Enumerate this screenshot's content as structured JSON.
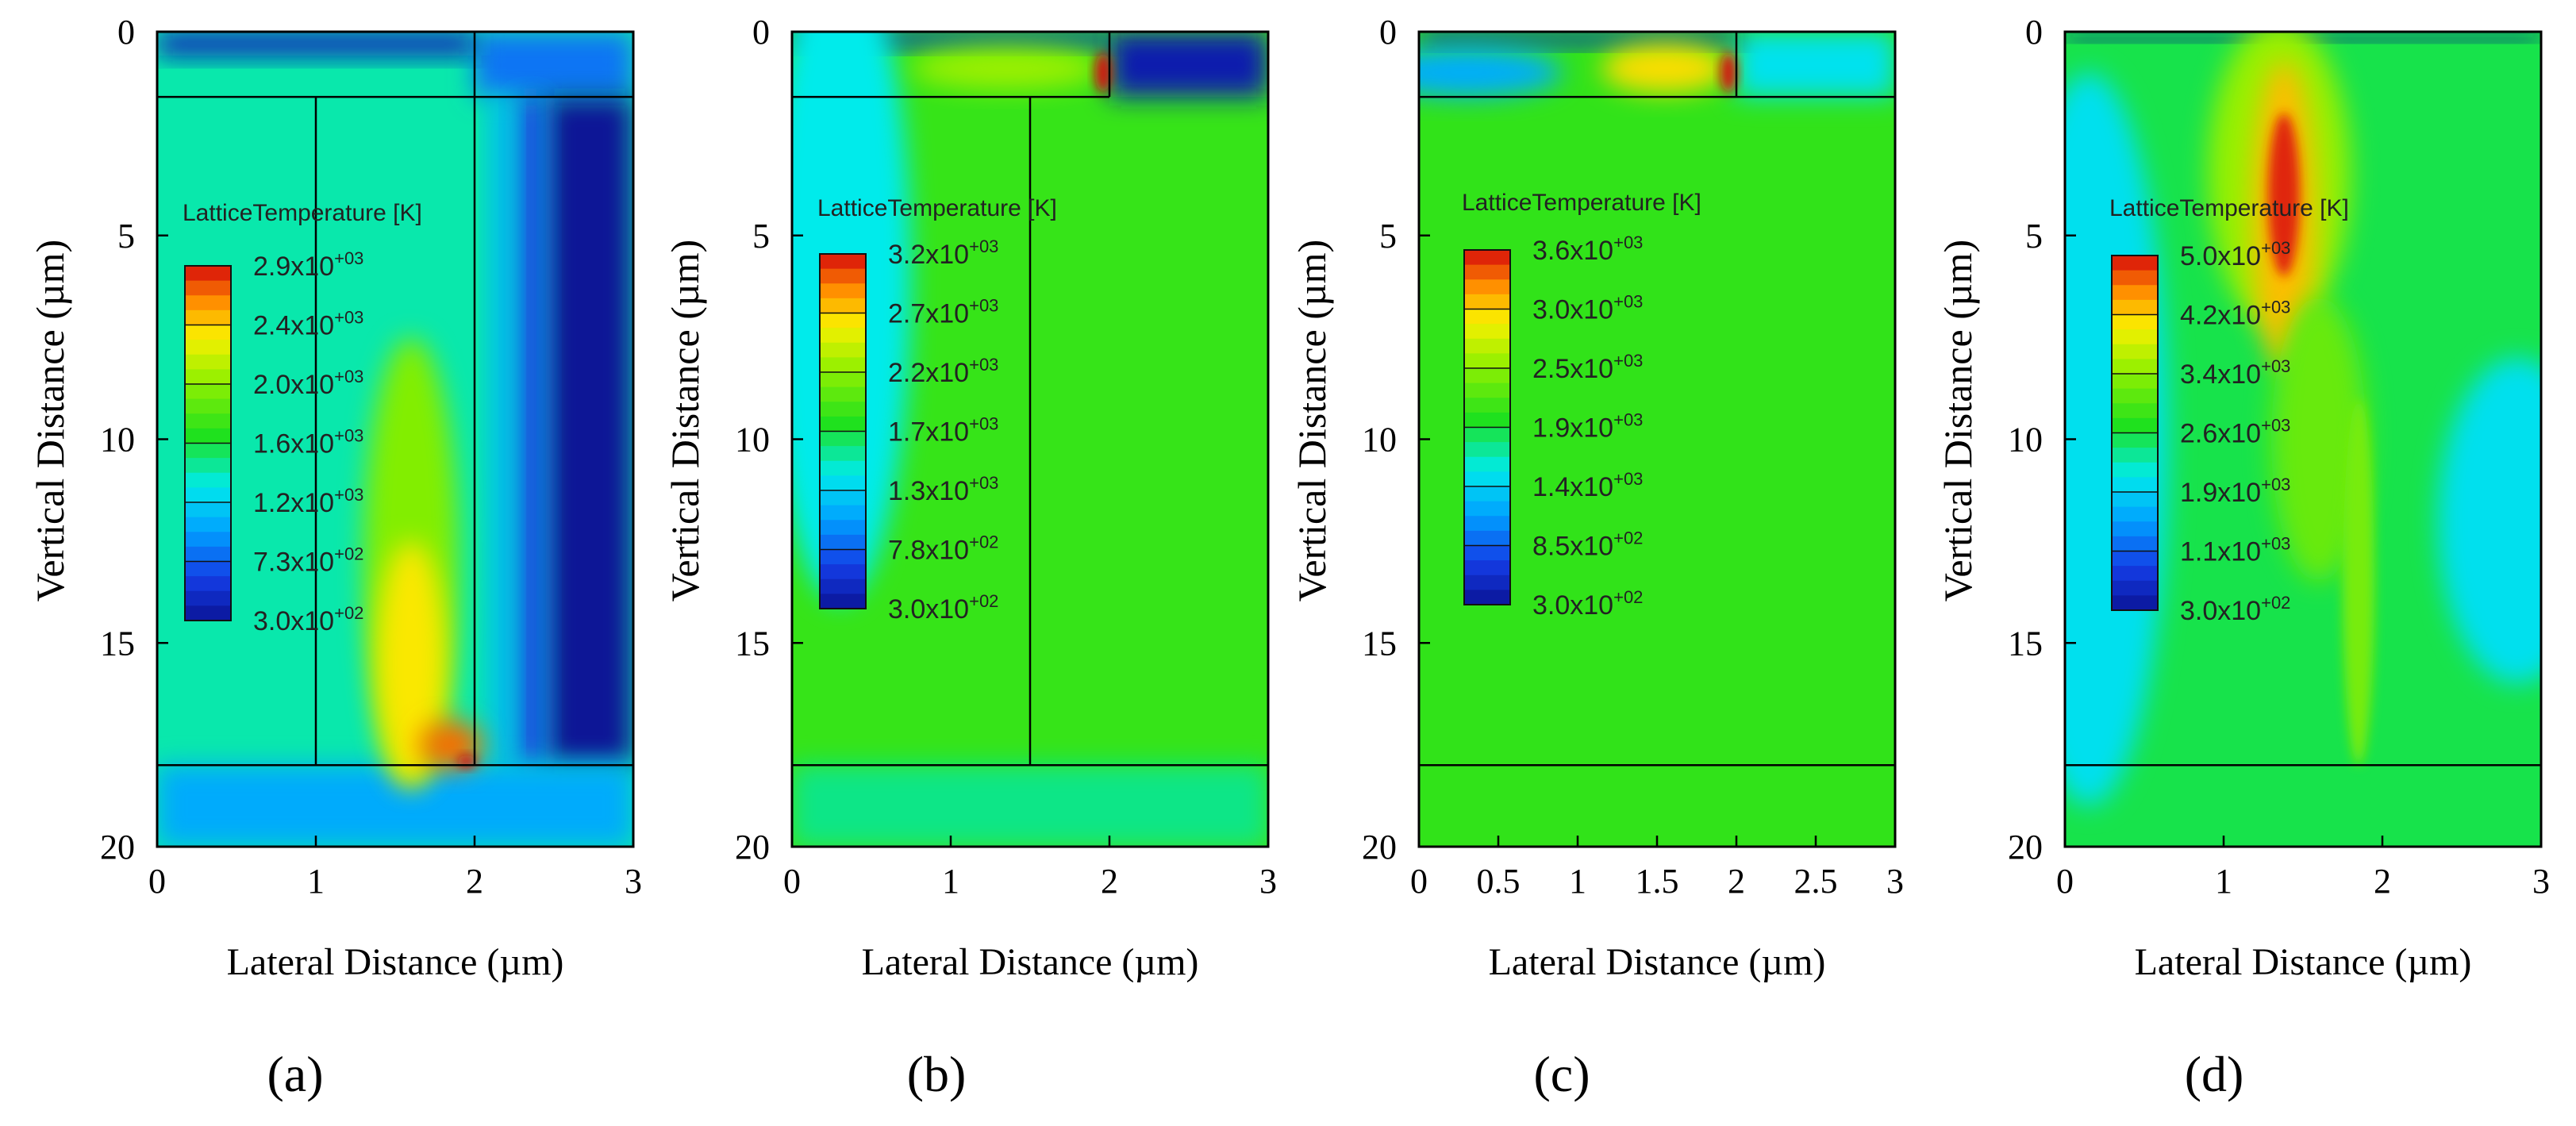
{
  "figure": {
    "panels": [
      "a",
      "b",
      "c",
      "d"
    ]
  },
  "chart_data": [
    {
      "type": "heatmap",
      "panel": "a",
      "caption": "(a)",
      "xlabel": "Lateral Distance (µm)",
      "ylabel": "Vertical Distance (µm)",
      "xlim": [
        0,
        3
      ],
      "ylim": [
        0,
        20
      ],
      "y_inverted": true,
      "xticks": [
        "0",
        "1",
        "2",
        "3"
      ],
      "yticks": [
        "0",
        "5",
        "10",
        "15",
        "20"
      ],
      "legend_title": "LatticeTemperature [K]",
      "legend_values": [
        "2.9x10+03",
        "2.4x10+03",
        "2.0x10+03",
        "1.6x10+03",
        "1.2x10+03",
        "7.3x10+02",
        "3.0x10+02"
      ],
      "legend_mantissa": [
        "2.9",
        "2.4",
        "2.0",
        "1.6",
        "1.2",
        "7.3",
        "3.0"
      ],
      "legend_exponent": [
        "+03",
        "+03",
        "+03",
        "+03",
        "+03",
        "+02",
        "+02"
      ],
      "t_min": 300,
      "t_max": 2900,
      "background_temperature": 1400,
      "structure_lines": [
        {
          "from": [
            0,
            1.6
          ],
          "to": [
            2.0,
            1.6
          ]
        },
        {
          "from": [
            1.0,
            1.6
          ],
          "to": [
            1.0,
            18.0
          ]
        },
        {
          "from": [
            2.0,
            0
          ],
          "to": [
            2.0,
            18.0
          ]
        },
        {
          "from": [
            0,
            18.0
          ],
          "to": [
            3.0,
            18.0
          ]
        },
        {
          "from": [
            2.0,
            1.6
          ],
          "to": [
            3.0,
            1.6
          ]
        }
      ],
      "features": [
        {
          "shape": "rect",
          "x": [
            2.0,
            3.0
          ],
          "y": [
            0,
            1.6
          ],
          "temperature": 800
        },
        {
          "shape": "rect",
          "x": [
            2.45,
            3.0
          ],
          "y": [
            1.6,
            18.0
          ],
          "temperature": 300
        },
        {
          "shape": "rect",
          "x": [
            2.25,
            2.45
          ],
          "y": [
            1.6,
            18.0
          ],
          "temperature": 650
        },
        {
          "shape": "rect",
          "x": [
            2.1,
            2.25
          ],
          "y": [
            1.6,
            18.0
          ],
          "temperature": 1050
        },
        {
          "shape": "rect",
          "x": [
            0,
            2.0
          ],
          "y": [
            0,
            0.6
          ],
          "temperature": 450
        },
        {
          "shape": "rect",
          "x": [
            0,
            3.0
          ],
          "y": [
            18.0,
            20.0
          ],
          "temperature": 1000
        },
        {
          "shape": "ellipse",
          "cx": 1.6,
          "cy": 13.0,
          "rx": 0.3,
          "ry": 5.5,
          "temperature": 2000
        },
        {
          "shape": "ellipse",
          "cx": 1.6,
          "cy": 15.5,
          "rx": 0.22,
          "ry": 3.0,
          "temperature": 2400
        },
        {
          "shape": "ellipse",
          "cx": 1.85,
          "cy": 17.5,
          "rx": 0.2,
          "ry": 0.6,
          "temperature": 2700
        },
        {
          "shape": "ellipse",
          "cx": 1.95,
          "cy": 17.9,
          "rx": 0.06,
          "ry": 0.15,
          "temperature": 2900
        }
      ]
    },
    {
      "type": "heatmap",
      "panel": "b",
      "caption": "(b)",
      "xlabel": "Lateral Distance (µm)",
      "ylabel": "Vertical Distance (µm)",
      "xlim": [
        0,
        3
      ],
      "ylim": [
        0,
        20
      ],
      "y_inverted": true,
      "xticks": [
        "0",
        "1",
        "2",
        "3"
      ],
      "yticks": [
        "0",
        "5",
        "10",
        "15",
        "20"
      ],
      "legend_title": "LatticeTemperature [K]",
      "legend_values": [
        "3.2x10+03",
        "2.7x10+03",
        "2.2x10+03",
        "1.7x10+03",
        "1.3x10+03",
        "7.8x10+02",
        "3.0x10+02"
      ],
      "legend_mantissa": [
        "3.2",
        "2.7",
        "2.2",
        "1.7",
        "1.3",
        "7.8",
        "3.0"
      ],
      "legend_exponent": [
        "+03",
        "+03",
        "+03",
        "+03",
        "+03",
        "+02",
        "+02"
      ],
      "t_min": 300,
      "t_max": 3200,
      "background_temperature": 1900,
      "structure_lines": [
        {
          "from": [
            0,
            1.6
          ],
          "to": [
            2.0,
            1.6
          ]
        },
        {
          "from": [
            1.5,
            1.6
          ],
          "to": [
            1.5,
            18.0
          ]
        },
        {
          "from": [
            2.0,
            0
          ],
          "to": [
            2.0,
            1.6
          ]
        },
        {
          "from": [
            0,
            18.0
          ],
          "to": [
            3.0,
            18.0
          ]
        }
      ],
      "features": [
        {
          "shape": "rect",
          "x": [
            2.0,
            3.0
          ],
          "y": [
            0,
            1.6
          ],
          "temperature": 400
        },
        {
          "shape": "rect",
          "x": [
            0,
            2.0
          ],
          "y": [
            0,
            0.4
          ],
          "temperature": 500
        },
        {
          "shape": "ellipse",
          "cx": 0.3,
          "cy": 6.0,
          "rx": 0.45,
          "ry": 8.0,
          "temperature": 1400
        },
        {
          "shape": "ellipse",
          "cx": 1.35,
          "cy": 0.9,
          "rx": 0.6,
          "ry": 0.5,
          "temperature": 2300
        },
        {
          "shape": "ellipse",
          "cx": 1.96,
          "cy": 1.0,
          "rx": 0.05,
          "ry": 0.5,
          "temperature": 3200
        },
        {
          "shape": "rect",
          "x": [
            0,
            3.0
          ],
          "y": [
            18.0,
            20.0
          ],
          "temperature": 1600
        }
      ]
    },
    {
      "type": "heatmap",
      "panel": "c",
      "caption": "(c)",
      "xlabel": "Lateral Distance (µm)",
      "ylabel": "Vertical Distance (µm)",
      "xlim": [
        0,
        3
      ],
      "ylim": [
        0,
        20
      ],
      "y_inverted": true,
      "xticks": [
        "0",
        "0.5",
        "1",
        "1.5",
        "2",
        "2.5",
        "3"
      ],
      "yticks": [
        "0",
        "5",
        "10",
        "15",
        "20"
      ],
      "legend_title": "LatticeTemperature [K]",
      "legend_values": [
        "3.6x10+03",
        "3.0x10+03",
        "2.5x10+03",
        "1.9x10+03",
        "1.4x10+03",
        "8.5x10+02",
        "3.0x10+02"
      ],
      "legend_mantissa": [
        "3.6",
        "3.0",
        "2.5",
        "1.9",
        "1.4",
        "8.5",
        "3.0"
      ],
      "legend_exponent": [
        "+03",
        "+03",
        "+03",
        "+03",
        "+03",
        "+02",
        "+02"
      ],
      "t_min": 300,
      "t_max": 3600,
      "background_temperature": 2100,
      "structure_lines": [
        {
          "from": [
            0,
            1.6
          ],
          "to": [
            2.0,
            1.6
          ]
        },
        {
          "from": [
            2.0,
            0
          ],
          "to": [
            2.0,
            1.6
          ]
        },
        {
          "from": [
            2.0,
            1.6
          ],
          "to": [
            3.0,
            1.6
          ]
        },
        {
          "from": [
            0,
            18.0
          ],
          "to": [
            3.0,
            18.0
          ]
        }
      ],
      "features": [
        {
          "shape": "rect",
          "x": [
            2.0,
            3.0
          ],
          "y": [
            0,
            1.6
          ],
          "temperature": 1500
        },
        {
          "shape": "rect",
          "x": [
            0,
            2.0
          ],
          "y": [
            0,
            0.35
          ],
          "temperature": 500
        },
        {
          "shape": "ellipse",
          "cx": 0.3,
          "cy": 1.0,
          "rx": 0.6,
          "ry": 0.6,
          "temperature": 1200
        },
        {
          "shape": "ellipse",
          "cx": 1.55,
          "cy": 0.9,
          "rx": 0.4,
          "ry": 0.6,
          "temperature": 3000
        },
        {
          "shape": "ellipse",
          "cx": 1.95,
          "cy": 1.0,
          "rx": 0.05,
          "ry": 0.5,
          "temperature": 3600
        }
      ]
    },
    {
      "type": "heatmap",
      "panel": "d",
      "caption": "(d)",
      "xlabel": "Lateral Distance (µm)",
      "ylabel": "Vertical Distance (µm)",
      "xlim": [
        0,
        3
      ],
      "ylim": [
        0,
        20
      ],
      "y_inverted": true,
      "xticks": [
        "0",
        "1",
        "2",
        "3"
      ],
      "yticks": [
        "0",
        "5",
        "10",
        "15",
        "20"
      ],
      "legend_title": "LatticeTemperature [K]",
      "legend_values": [
        "5.0x10+03",
        "4.2x10+03",
        "3.4x10+03",
        "2.6x10+03",
        "1.9x10+03",
        "1.1x10+03",
        "3.0x10+02"
      ],
      "legend_mantissa": [
        "5.0",
        "4.2",
        "3.4",
        "2.6",
        "1.9",
        "1.1",
        "3.0"
      ],
      "legend_exponent": [
        "+03",
        "+03",
        "+03",
        "+03",
        "+03",
        "+03",
        "+02"
      ],
      "t_min": 300,
      "t_max": 5000,
      "background_temperature": 2600,
      "structure_lines": [
        {
          "from": [
            0,
            18.0
          ],
          "to": [
            3.0,
            18.0
          ]
        }
      ],
      "features": [
        {
          "shape": "rect",
          "x": [
            0,
            3.0
          ],
          "y": [
            0,
            0.2
          ],
          "temperature": 300
        },
        {
          "shape": "ellipse",
          "cx": 0.15,
          "cy": 10.0,
          "rx": 0.5,
          "ry": 9.0,
          "temperature": 2000
        },
        {
          "shape": "ellipse",
          "cx": 2.85,
          "cy": 12.0,
          "rx": 0.5,
          "ry": 4.0,
          "temperature": 2000
        },
        {
          "shape": "ellipse",
          "cx": 1.35,
          "cy": 3.5,
          "rx": 0.45,
          "ry": 3.8,
          "temperature": 3500
        },
        {
          "shape": "ellipse",
          "cx": 1.38,
          "cy": 4.5,
          "rx": 0.2,
          "ry": 3.8,
          "temperature": 4300
        },
        {
          "shape": "ellipse",
          "cx": 1.38,
          "cy": 4.0,
          "rx": 0.1,
          "ry": 2.0,
          "temperature": 4900
        },
        {
          "shape": "ellipse",
          "cx": 1.6,
          "cy": 10.0,
          "rx": 0.3,
          "ry": 3.5,
          "temperature": 3200
        },
        {
          "shape": "ellipse",
          "cx": 1.85,
          "cy": 13.5,
          "rx": 0.1,
          "ry": 4.5,
          "temperature": 3300
        }
      ]
    }
  ]
}
